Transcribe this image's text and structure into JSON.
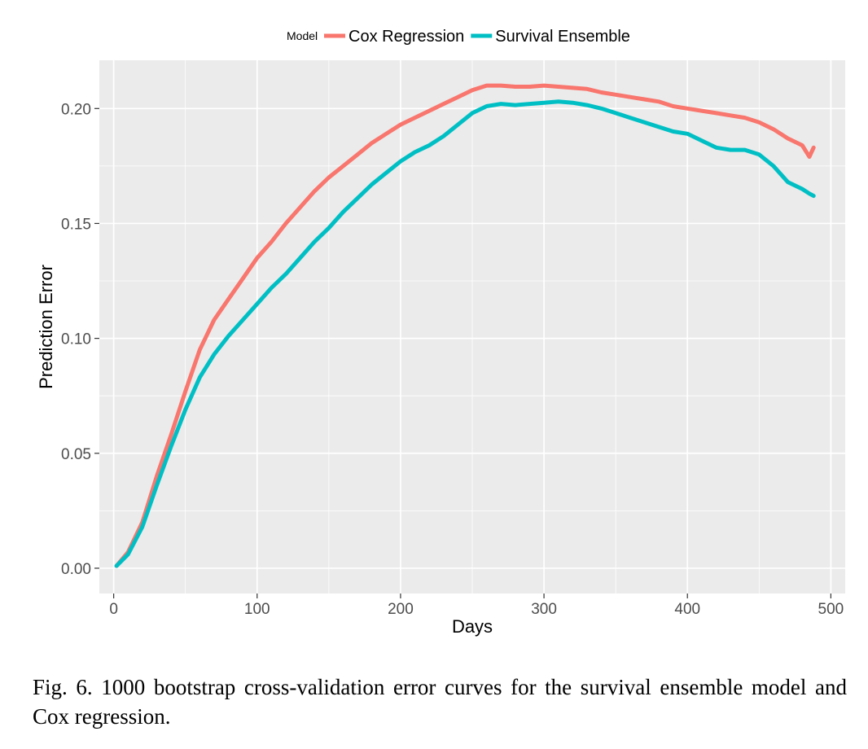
{
  "caption": "Fig. 6.  1000 bootstrap cross-validation error curves for the survival ensemble model and Cox regression.",
  "chart_data": {
    "type": "line",
    "xlabel": "Days",
    "ylabel": "Prediction Error",
    "xlim": [
      -10,
      510
    ],
    "ylim": [
      -0.011,
      0.221
    ],
    "x_ticks": [
      0,
      100,
      200,
      300,
      400,
      500
    ],
    "x_tick_labels": [
      "0",
      "100",
      "200",
      "300",
      "400",
      "500"
    ],
    "y_ticks": [
      0,
      0.05,
      0.1,
      0.15,
      0.2
    ],
    "y_tick_labels": [
      "0.00",
      "0.05",
      "0.10",
      "0.15",
      "0.20"
    ],
    "grid": true,
    "legend": {
      "title": "Model",
      "position": "top"
    },
    "series": [
      {
        "name": "Cox Regression",
        "color": "#F8766D",
        "x": [
          2,
          10,
          20,
          30,
          40,
          50,
          60,
          70,
          80,
          90,
          100,
          110,
          120,
          130,
          140,
          150,
          160,
          170,
          180,
          190,
          200,
          210,
          220,
          230,
          240,
          250,
          260,
          270,
          280,
          290,
          300,
          310,
          320,
          330,
          340,
          350,
          360,
          370,
          380,
          390,
          400,
          410,
          420,
          430,
          440,
          450,
          460,
          470,
          480,
          485,
          488
        ],
        "values": [
          0.001,
          0.007,
          0.02,
          0.04,
          0.058,
          0.077,
          0.095,
          0.108,
          0.117,
          0.126,
          0.135,
          0.142,
          0.15,
          0.157,
          0.164,
          0.17,
          0.175,
          0.18,
          0.185,
          0.189,
          0.193,
          0.196,
          0.199,
          0.202,
          0.205,
          0.208,
          0.21,
          0.21,
          0.2095,
          0.2095,
          0.21,
          0.2095,
          0.209,
          0.2085,
          0.207,
          0.206,
          0.205,
          0.204,
          0.203,
          0.201,
          0.2,
          0.199,
          0.198,
          0.197,
          0.196,
          0.194,
          0.191,
          0.187,
          0.184,
          0.179,
          0.183
        ]
      },
      {
        "name": "Survival Ensemble",
        "color": "#00BFC4",
        "x": [
          2,
          10,
          20,
          30,
          40,
          50,
          60,
          70,
          80,
          90,
          100,
          110,
          120,
          130,
          140,
          150,
          160,
          170,
          180,
          190,
          200,
          210,
          220,
          230,
          240,
          250,
          260,
          270,
          280,
          290,
          300,
          310,
          320,
          330,
          340,
          350,
          360,
          370,
          380,
          390,
          400,
          410,
          420,
          430,
          440,
          450,
          460,
          470,
          480,
          485,
          488
        ],
        "values": [
          0.001,
          0.006,
          0.018,
          0.036,
          0.053,
          0.069,
          0.083,
          0.093,
          0.101,
          0.108,
          0.115,
          0.122,
          0.128,
          0.135,
          0.142,
          0.148,
          0.155,
          0.161,
          0.167,
          0.172,
          0.177,
          0.181,
          0.184,
          0.188,
          0.193,
          0.198,
          0.201,
          0.202,
          0.2015,
          0.202,
          0.2025,
          0.203,
          0.2025,
          0.2015,
          0.2,
          0.198,
          0.196,
          0.194,
          0.192,
          0.19,
          0.189,
          0.186,
          0.183,
          0.182,
          0.182,
          0.18,
          0.175,
          0.168,
          0.165,
          0.163,
          0.162
        ]
      }
    ]
  }
}
